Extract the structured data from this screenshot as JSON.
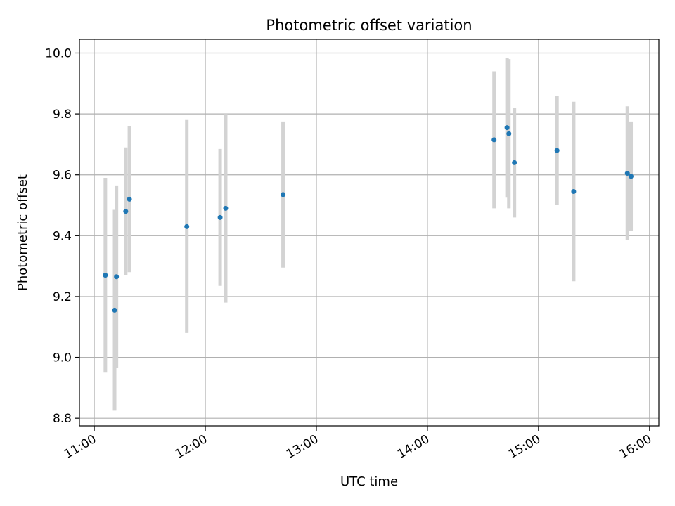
{
  "chart_data": {
    "type": "scatter",
    "title": "Photometric offset variation",
    "xlabel": "UTC time",
    "ylabel": "Photometric offset",
    "xlim": [
      "10:52",
      "16:05"
    ],
    "ylim": [
      8.775,
      10.045
    ],
    "grid": true,
    "x_ticks": [
      "11:00",
      "12:00",
      "13:00",
      "14:00",
      "15:00",
      "16:00"
    ],
    "y_ticks": [
      "8.8",
      "9.0",
      "9.2",
      "9.4",
      "9.6",
      "9.8",
      "10.0"
    ],
    "points": [
      {
        "x": "11:06",
        "y": 9.27,
        "yerr": 0.32
      },
      {
        "x": "11:11",
        "y": 9.155,
        "yerr": 0.33
      },
      {
        "x": "11:12",
        "y": 9.265,
        "yerr": 0.3
      },
      {
        "x": "11:17",
        "y": 9.48,
        "yerr": 0.21
      },
      {
        "x": "11:19",
        "y": 9.52,
        "yerr": 0.24
      },
      {
        "x": "11:50",
        "y": 9.43,
        "yerr": 0.35
      },
      {
        "x": "12:08",
        "y": 9.46,
        "yerr": 0.225
      },
      {
        "x": "12:11",
        "y": 9.49,
        "yerr": 0.31
      },
      {
        "x": "12:42",
        "y": 9.535,
        "yerr": 0.24
      },
      {
        "x": "14:36",
        "y": 9.715,
        "yerr": 0.225
      },
      {
        "x": "14:43",
        "y": 9.755,
        "yerr": 0.23
      },
      {
        "x": "14:44",
        "y": 9.735,
        "yerr": 0.245
      },
      {
        "x": "14:47",
        "y": 9.64,
        "yerr": 0.18
      },
      {
        "x": "15:10",
        "y": 9.68,
        "yerr": 0.18
      },
      {
        "x": "15:19",
        "y": 9.545,
        "yerr": 0.295
      },
      {
        "x": "15:48",
        "y": 9.605,
        "yerr": 0.22
      },
      {
        "x": "15:50",
        "y": 9.595,
        "yerr": 0.18
      }
    ],
    "colors": {
      "marker": "#1f77b4",
      "errorbar": "#d3d3d3",
      "grid": "#b0b0b0",
      "axes": "#000000"
    }
  }
}
